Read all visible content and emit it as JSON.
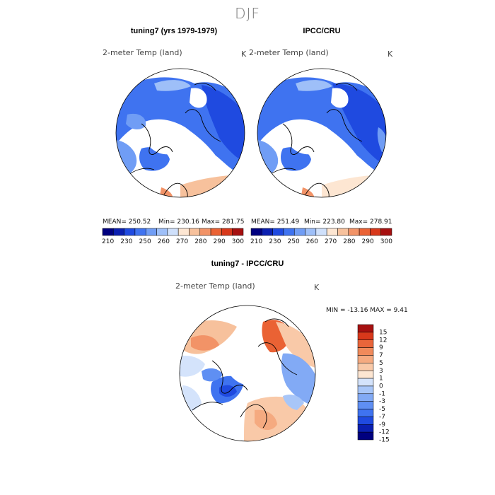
{
  "figure": {
    "title": "DJF"
  },
  "colors": {
    "abs_scale": [
      "#00007f",
      "#0a1fb0",
      "#1f4ae0",
      "#3f73f0",
      "#709df5",
      "#9ebff8",
      "#cfe0fb",
      "#fde6d2",
      "#f7c19c",
      "#f29367",
      "#ea6234",
      "#d8381b",
      "#a61010"
    ],
    "diff_scale": [
      "#00007f",
      "#0a1fb0",
      "#1f4ae0",
      "#3f73f0",
      "#5f8ff3",
      "#82aaf5",
      "#a8c6f8",
      "#d4e3fb",
      "#fde6d2",
      "#f9c9a8",
      "#f5aa80",
      "#f08a5b",
      "#e9653a",
      "#d8381b",
      "#a61010"
    ],
    "land_cold": "#3f73f0",
    "land_cool": "#709df5",
    "land_warm": "#f7c19c"
  },
  "chart_data": [
    {
      "type": "heatmap",
      "projection": "north-polar-stereographic",
      "title": "tuning7 (yrs 1979-1979)",
      "field": "2-meter Temp (land)",
      "units": "K",
      "stats": {
        "mean": "MEAN= 250.52",
        "min": "Min= 230.16",
        "max": "Max= 281.75"
      },
      "colorbar": {
        "levels": [
          "210",
          "230",
          "250",
          "260",
          "270",
          "280",
          "290",
          "300"
        ]
      }
    },
    {
      "type": "heatmap",
      "projection": "north-polar-stereographic",
      "title": "IPCC/CRU",
      "field": "2-meter Temp (land)",
      "units": "K",
      "stats": {
        "mean": "MEAN= 251.49",
        "min": "Min= 223.80",
        "max": "Max= 278.91"
      },
      "colorbar": {
        "levels": [
          "210",
          "230",
          "250",
          "260",
          "270",
          "280",
          "290",
          "300"
        ]
      }
    },
    {
      "type": "heatmap",
      "projection": "north-polar-stereographic",
      "title": "tuning7 - IPCC/CRU",
      "field": "2-meter Temp (land)",
      "units": "K",
      "minmax": "MIN = -13.16 MAX =   9.41",
      "colorbar": {
        "levels": [
          "15",
          "12",
          "9",
          "7",
          "5",
          "3",
          "1",
          "0",
          "-1",
          "-3",
          "-5",
          "-7",
          "-9",
          "-12",
          "-15"
        ]
      }
    }
  ]
}
